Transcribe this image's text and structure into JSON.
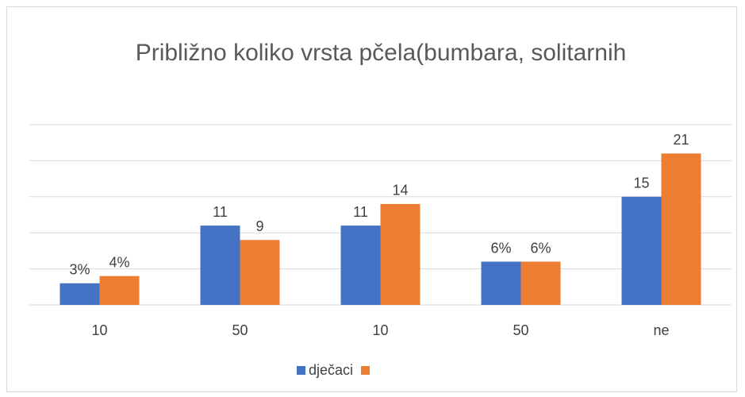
{
  "chart_data": {
    "type": "bar",
    "title": "Približno koliko vrsta pčela(bumbara, solitarnih",
    "categories": [
      "10",
      "50",
      "10",
      "50",
      "ne"
    ],
    "series": [
      {
        "name": "dječaci",
        "color": "#4472c4",
        "values": [
          3,
          11,
          11,
          6,
          15
        ],
        "value_labels": [
          "3%",
          "11",
          "11",
          "6%",
          "15"
        ]
      },
      {
        "color": "#ed7d31",
        "values": [
          4,
          9,
          14,
          6,
          21
        ],
        "value_labels": [
          "4%",
          "9",
          "14",
          "6%",
          "21"
        ]
      }
    ],
    "ylim": [
      0,
      25
    ],
    "yticks": [
      0,
      5,
      10,
      15,
      20,
      25
    ],
    "grid": true,
    "legend": "bottom"
  }
}
